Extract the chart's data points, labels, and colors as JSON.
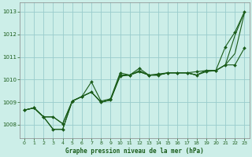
{
  "title": "Graphe pression niveau de la mer (hPa)",
  "background_color": "#cceee8",
  "grid_color": "#99cccc",
  "line_color": "#1a5c1a",
  "xlim": [
    -0.5,
    23.5
  ],
  "ylim": [
    1007.4,
    1013.4
  ],
  "xticks": [
    0,
    1,
    2,
    3,
    4,
    5,
    6,
    7,
    8,
    9,
    10,
    11,
    12,
    13,
    14,
    15,
    16,
    17,
    18,
    19,
    20,
    21,
    22,
    23
  ],
  "yticks": [
    1008,
    1009,
    1010,
    1011,
    1012,
    1013
  ],
  "series": [
    {
      "x": [
        0,
        1,
        2,
        3,
        4,
        5,
        6,
        7,
        8,
        9,
        10,
        11,
        12,
        13,
        14,
        15,
        16,
        17,
        18,
        19,
        20,
        21,
        22,
        23
      ],
      "y": [
        1008.65,
        1008.75,
        1008.35,
        1007.8,
        1007.8,
        1009.05,
        1009.25,
        1009.9,
        1009.05,
        1009.15,
        1010.3,
        1010.2,
        1010.5,
        1010.2,
        1010.25,
        1010.3,
        1010.3,
        1010.3,
        1010.35,
        1010.4,
        1010.4,
        1011.45,
        1012.1,
        1013.0
      ],
      "has_markers": true
    },
    {
      "x": [
        0,
        1,
        2,
        3,
        4,
        5,
        6,
        7,
        8,
        9,
        10,
        11,
        12,
        13,
        14,
        15,
        16,
        17,
        18,
        19,
        20,
        21,
        22,
        23
      ],
      "y": [
        1008.65,
        1008.75,
        1008.35,
        1007.8,
        1007.8,
        1009.05,
        1009.25,
        1009.45,
        1009.0,
        1009.1,
        1010.2,
        1010.2,
        1010.4,
        1010.2,
        1010.2,
        1010.3,
        1010.3,
        1010.3,
        1010.2,
        1010.4,
        1010.4,
        1010.65,
        1011.95,
        1013.0
      ],
      "has_markers": false
    },
    {
      "x": [
        0,
        1,
        2,
        3,
        4,
        5,
        6,
        7,
        8,
        9,
        10,
        11,
        12,
        13,
        14,
        15,
        16,
        17,
        18,
        19,
        20,
        21,
        22,
        23
      ],
      "y": [
        1008.65,
        1008.75,
        1008.35,
        1008.35,
        1008.05,
        1009.05,
        1009.25,
        1009.45,
        1009.0,
        1009.1,
        1010.2,
        1010.2,
        1010.35,
        1010.2,
        1010.2,
        1010.3,
        1010.3,
        1010.3,
        1010.2,
        1010.4,
        1010.4,
        1010.65,
        1011.15,
        1012.95
      ],
      "has_markers": false
    },
    {
      "x": [
        0,
        1,
        2,
        3,
        4,
        5,
        6,
        7,
        8,
        9,
        10,
        11,
        12,
        13,
        14,
        15,
        16,
        17,
        18,
        19,
        20,
        21,
        22,
        23
      ],
      "y": [
        1008.65,
        1008.75,
        1008.35,
        1008.35,
        1008.05,
        1009.05,
        1009.25,
        1009.45,
        1009.0,
        1009.1,
        1010.15,
        1010.2,
        1010.35,
        1010.2,
        1010.2,
        1010.3,
        1010.3,
        1010.3,
        1010.2,
        1010.35,
        1010.4,
        1010.65,
        1010.65,
        1011.4
      ],
      "has_markers": true
    }
  ]
}
